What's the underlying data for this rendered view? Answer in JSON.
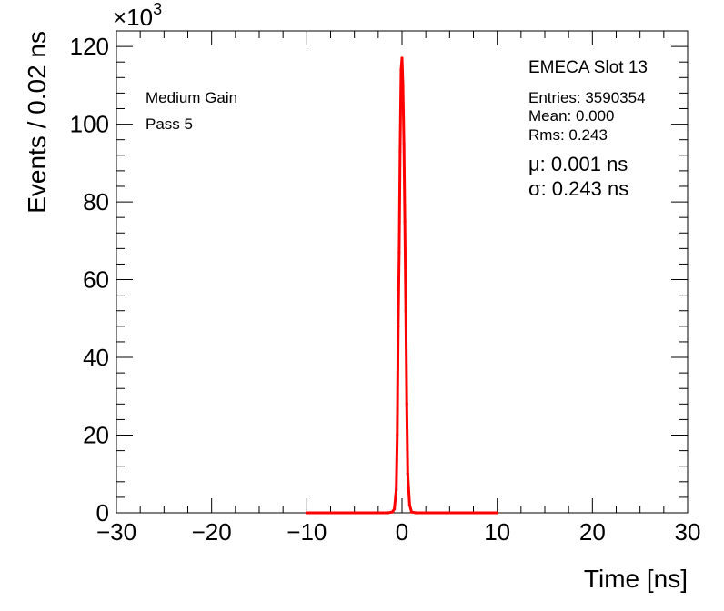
{
  "chart_data": {
    "type": "line",
    "title": "",
    "xlabel": "Time [ns]",
    "ylabel": "Events / 0.02 ns",
    "y_multiplier": "×10",
    "y_multiplier_exp": "3",
    "xlim": [
      -30,
      30
    ],
    "ylim": [
      0,
      124
    ],
    "x_ticks": [
      -30,
      -20,
      -10,
      0,
      10,
      20,
      30
    ],
    "x_tick_labels": [
      "−30",
      "−20",
      "−10",
      "0",
      "10",
      "20",
      "30"
    ],
    "y_ticks": [
      0,
      20,
      40,
      60,
      80,
      100,
      120
    ],
    "y_tick_labels": [
      "0",
      "20",
      "40",
      "60",
      "80",
      "100",
      "120"
    ],
    "grid": false,
    "legend": "none",
    "series": [
      {
        "color": "#ff0000",
        "x": [
          -10,
          -1.5,
          -1.0,
          -0.8,
          -0.6,
          -0.5,
          -0.4,
          -0.3,
          -0.2,
          -0.1,
          0.0,
          0.1,
          0.2,
          0.3,
          0.4,
          0.5,
          0.6,
          0.8,
          1.0,
          1.5,
          10
        ],
        "y": [
          0,
          0,
          0.2,
          1.0,
          6,
          20,
          48,
          67,
          93,
          114,
          117,
          110,
          95,
          75,
          52,
          28,
          10,
          2,
          0.2,
          0,
          0
        ]
      }
    ]
  },
  "stats": {
    "title": "EMECA Slot 13",
    "entries": "Entries: 3590354",
    "mean": "Mean: 0.000",
    "rms": "Rms: 0.243",
    "mu": "μ: 0.001 ns",
    "sigma": "σ: 0.243 ns"
  },
  "labels": {
    "gain": "Medium Gain",
    "pass": "Pass 5"
  }
}
